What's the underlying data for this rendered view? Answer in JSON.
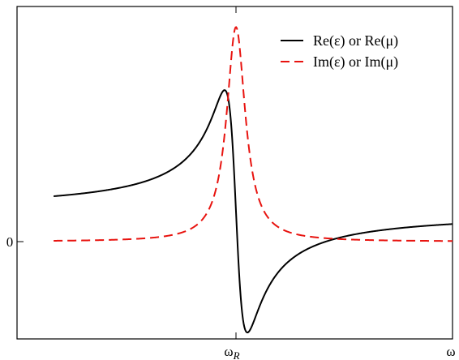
{
  "chart_data": {
    "type": "line",
    "title": "",
    "xlabel": "",
    "ylabel": "",
    "x_ticks": [
      {
        "x": 0,
        "label_main": "ω",
        "label_sub": "R"
      },
      {
        "x": 0.95,
        "label_main": "ω",
        "label_sub": ""
      }
    ],
    "y_ticks": [
      {
        "y": 0,
        "label": "0"
      }
    ],
    "xlim": [
      -0.85,
      0.95
    ],
    "ylim": [
      -1.1,
      1.94
    ],
    "grid": false,
    "legend_position": "top-right",
    "resonance": {
      "omega_R": 0,
      "gamma": 0.05,
      "re_offset": 0.25
    },
    "series": [
      {
        "name": "Re(ε) or Re(μ)",
        "kind": "real",
        "color": "#000000",
        "dash": "solid"
      },
      {
        "name": "Im(ε) or Im(μ)",
        "kind": "imag",
        "color": "#e8130f",
        "dash": "dashed"
      }
    ]
  }
}
